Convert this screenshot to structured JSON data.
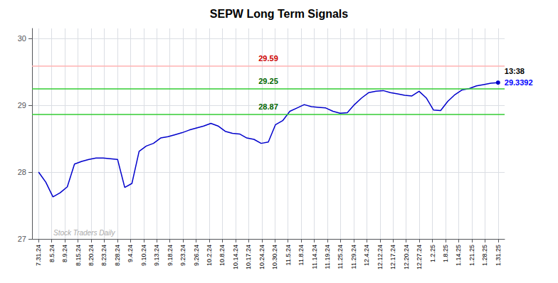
{
  "chart_data": {
    "type": "line",
    "title": "SEPW Long Term Signals",
    "x": [
      0,
      0.546875,
      1.09375,
      1.640625,
      2.1875,
      2.734375,
      3.28125,
      3.828125,
      4.375,
      4.921875,
      5.46875,
      6.015625,
      6.5625,
      7.109375,
      7.65625,
      8.203125,
      8.75,
      9.296875,
      9.84375,
      10.390625,
      10.9375,
      11.484375,
      12.03125,
      12.578125,
      13.125,
      13.671875,
      14.21875,
      14.765625,
      15.3125,
      15.859375,
      16.40625,
      16.953125,
      17.5,
      18.046875,
      18.59375,
      19.140625,
      19.6875,
      20.234375,
      20.78125,
      21.328125,
      21.875,
      22.421875,
      22.96875,
      23.515625,
      24.0625,
      24.609375,
      25.15625,
      25.703125,
      26.25,
      26.796875,
      27.34375,
      27.890625,
      28.4375,
      28.984375,
      29.53125,
      30.078125,
      30.625,
      31.171875,
      31.71875,
      32.265625,
      32.8125,
      33.359375,
      33.90625,
      34.453125,
      35
    ],
    "values": [
      28.0,
      27.85,
      27.63,
      27.69,
      27.78,
      28.12,
      28.16,
      28.19,
      28.21,
      28.21,
      28.2,
      28.19,
      27.77,
      27.83,
      28.31,
      28.39,
      28.43,
      28.51,
      28.53,
      28.56,
      28.59,
      28.63,
      28.66,
      28.69,
      28.73,
      28.69,
      28.61,
      28.58,
      28.57,
      28.51,
      28.49,
      28.43,
      28.45,
      28.71,
      28.77,
      28.91,
      28.96,
      29.01,
      28.98,
      28.97,
      28.96,
      28.91,
      28.88,
      28.89,
      29.01,
      29.11,
      29.19,
      29.21,
      29.22,
      29.19,
      29.17,
      29.15,
      29.14,
      29.21,
      29.11,
      28.93,
      28.92,
      29.06,
      29.16,
      29.23,
      29.25,
      29.29,
      29.31,
      29.33,
      29.3392
    ],
    "color": "#0000cc",
    "xlim": [
      -0.5,
      35.5
    ],
    "xticks": [
      {
        "value": 0,
        "label": "7.31.24"
      },
      {
        "value": 1,
        "label": "8.5.24"
      },
      {
        "value": 2,
        "label": "8.9.24"
      },
      {
        "value": 3,
        "label": "8.15.24"
      },
      {
        "value": 4,
        "label": "8.20.24"
      },
      {
        "value": 5,
        "label": "8.23.24"
      },
      {
        "value": 6,
        "label": "8.28.24"
      },
      {
        "value": 7,
        "label": "9.4.24"
      },
      {
        "value": 8,
        "label": "9.10.24"
      },
      {
        "value": 9,
        "label": "9.13.24"
      },
      {
        "value": 10,
        "label": "9.18.24"
      },
      {
        "value": 11,
        "label": "9.23.24"
      },
      {
        "value": 12,
        "label": "9.26.24"
      },
      {
        "value": 13,
        "label": "10.2.24"
      },
      {
        "value": 14,
        "label": "10.8.24"
      },
      {
        "value": 15,
        "label": "10.14.24"
      },
      {
        "value": 16,
        "label": "10.17.24"
      },
      {
        "value": 17,
        "label": "10.24.24"
      },
      {
        "value": 18,
        "label": "10.30.24"
      },
      {
        "value": 19,
        "label": "11.5.24"
      },
      {
        "value": 20,
        "label": "11.8.24"
      },
      {
        "value": 21,
        "label": "11.14.24"
      },
      {
        "value": 22,
        "label": "11.19.24"
      },
      {
        "value": 23,
        "label": "11.25.24"
      },
      {
        "value": 24,
        "label": "11.29.24"
      },
      {
        "value": 25,
        "label": "12.4.24"
      },
      {
        "value": 26,
        "label": "12.12.24"
      },
      {
        "value": 27,
        "label": "12.17.24"
      },
      {
        "value": 28,
        "label": "12.20.24"
      },
      {
        "value": 29,
        "label": "12.27.24"
      },
      {
        "value": 30,
        "label": "1.2.25"
      },
      {
        "value": 31,
        "label": "1.8.25"
      },
      {
        "value": 32,
        "label": "1.14.25"
      },
      {
        "value": 33,
        "label": "1.21.25"
      },
      {
        "value": 34,
        "label": "1.28.25"
      },
      {
        "value": 35,
        "label": "1.31.25"
      }
    ],
    "ylim": [
      27.0,
      30.15
    ],
    "yticks": [
      27,
      28,
      29,
      30
    ],
    "grid": true,
    "hlines": [
      {
        "value": 29.59,
        "color": "#ffb3b3",
        "label": "29.59",
        "label_color": "#cc0000"
      },
      {
        "value": 29.25,
        "color": "#33cc33",
        "label": "29.25",
        "label_color": "#006600"
      },
      {
        "value": 28.87,
        "color": "#33cc33",
        "label": "28.87",
        "label_color": "#006600"
      }
    ],
    "annotations": [
      {
        "text": "13:38",
        "color": "#000000"
      },
      {
        "text": "29.3392",
        "color": "#0000ff"
      }
    ],
    "watermark": "Stock Traders Daily"
  }
}
